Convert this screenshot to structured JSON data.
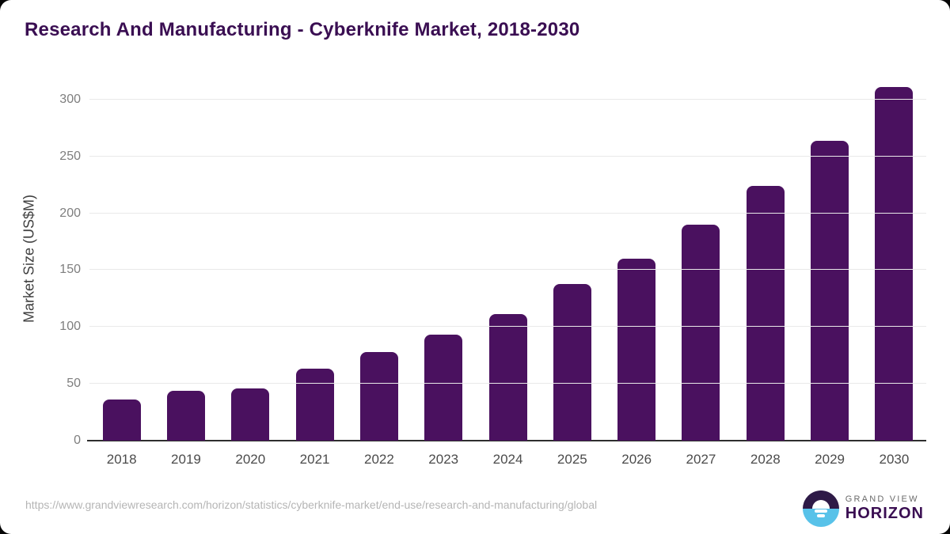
{
  "chart_data": {
    "type": "bar",
    "title": "Research And Manufacturing - Cyberknife Market, 2018-2030",
    "categories": [
      "2018",
      "2019",
      "2020",
      "2021",
      "2022",
      "2023",
      "2024",
      "2025",
      "2026",
      "2027",
      "2028",
      "2029",
      "2030"
    ],
    "values": [
      36,
      44,
      46,
      63,
      78,
      93,
      111,
      138,
      160,
      190,
      224,
      264,
      311
    ],
    "xlabel": "",
    "ylabel": "Market Size (US$M)",
    "yticks": [
      0,
      50,
      100,
      150,
      200,
      250,
      300
    ],
    "ylim": [
      0,
      320
    ],
    "grid": true,
    "legend": false,
    "bar_color": "#4A115F"
  },
  "colors": {
    "title_text": "#3A0E52",
    "bar": "#4A115F",
    "gridline": "#e9e9e9",
    "axis_line": "#2e2e2e",
    "logo_top": "#2e1a47",
    "logo_bottom": "#58c2e9"
  },
  "footer": {
    "source_url": "https://www.grandviewresearch.com/horizon/statistics/cyberknife-market/end-use/research-and-manufacturing/global",
    "logo": {
      "line1": "GRAND VIEW",
      "line2": "HORIZON",
      "icon": "horizon-sunrise-icon"
    }
  }
}
